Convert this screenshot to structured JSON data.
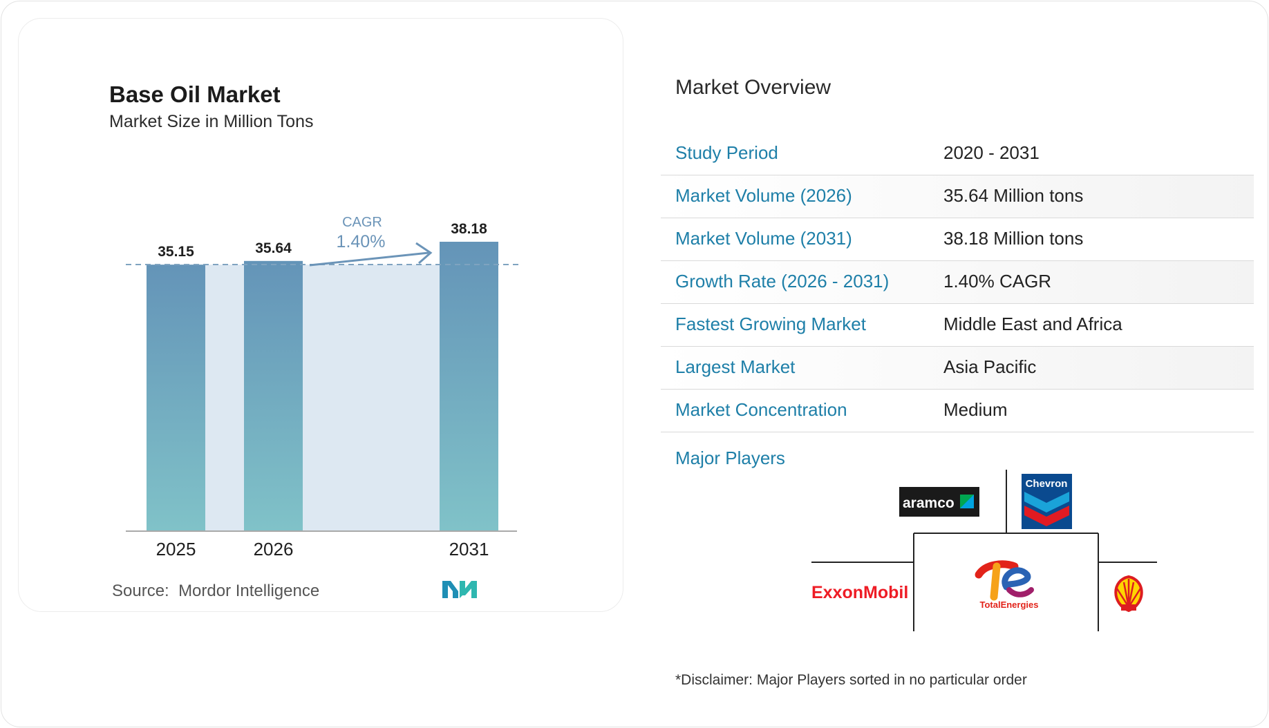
{
  "colors": {
    "accent": "#1e7fa8",
    "bar_top": "#6494b8",
    "bar_bottom": "#80c2c8",
    "band": "#dde8f2",
    "arrow": "#6b94b8",
    "axis": "#a9a9a9",
    "aramco_bg": "#1a1a1a",
    "aramco_green": "#00a651",
    "aramco_blue": "#00a3e0",
    "chevron_blue": "#0a4a8f",
    "chevron_light": "#1aa3d9",
    "chevron_red": "#e11b22",
    "exxon_red": "#ee1c25",
    "total_red": "#e2231a",
    "total_orange": "#f6a21a",
    "total_magenta": "#a01f6a",
    "total_blue": "#2a63b4",
    "shell_yellow": "#ffd500",
    "shell_red": "#dd1d21",
    "logo_blue": "#1f8fb5",
    "logo_teal": "#2fb7b0"
  },
  "chart": {
    "title": "Base Oil Market",
    "subtitle": "Market Size in Million Tons"
  },
  "chart_data": {
    "type": "bar",
    "title": "Base Oil Market",
    "subtitle": "Market Size in Million Tons",
    "categories": [
      "2025",
      "2026",
      "2031"
    ],
    "values": [
      35.15,
      35.64,
      38.18
    ],
    "value_labels": [
      "35.15",
      "35.64",
      "38.18"
    ],
    "ylim": [
      0,
      38.18
    ],
    "grid": false,
    "legend": "none",
    "annotation": {
      "label": "CAGR",
      "value": "1.40%",
      "from": "2026",
      "to": "2031"
    }
  },
  "source": {
    "label": "Source:",
    "name": "Mordor Intelligence"
  },
  "overview": {
    "title": "Market Overview",
    "rows": [
      {
        "label": "Study Period",
        "value": "2020 - 2031"
      },
      {
        "label": "Market Volume (2026)",
        "value": "35.64 Million tons"
      },
      {
        "label": "Market Volume (2031)",
        "value": "38.18 Million tons"
      },
      {
        "label": "Growth Rate (2026 - 2031)",
        "value": "1.40% CAGR"
      },
      {
        "label": "Fastest Growing Market",
        "value": "Middle East and Africa"
      },
      {
        "label": "Largest Market",
        "value": "Asia Pacific"
      },
      {
        "label": "Market Concentration",
        "value": "Medium"
      }
    ]
  },
  "players": {
    "label": "Major Players",
    "logos": [
      "aramco",
      "Chevron",
      "ExxonMobil",
      "TotalEnergies",
      "shell-logo"
    ]
  },
  "disclaimer": "*Disclaimer: Major Players sorted in no particular order"
}
